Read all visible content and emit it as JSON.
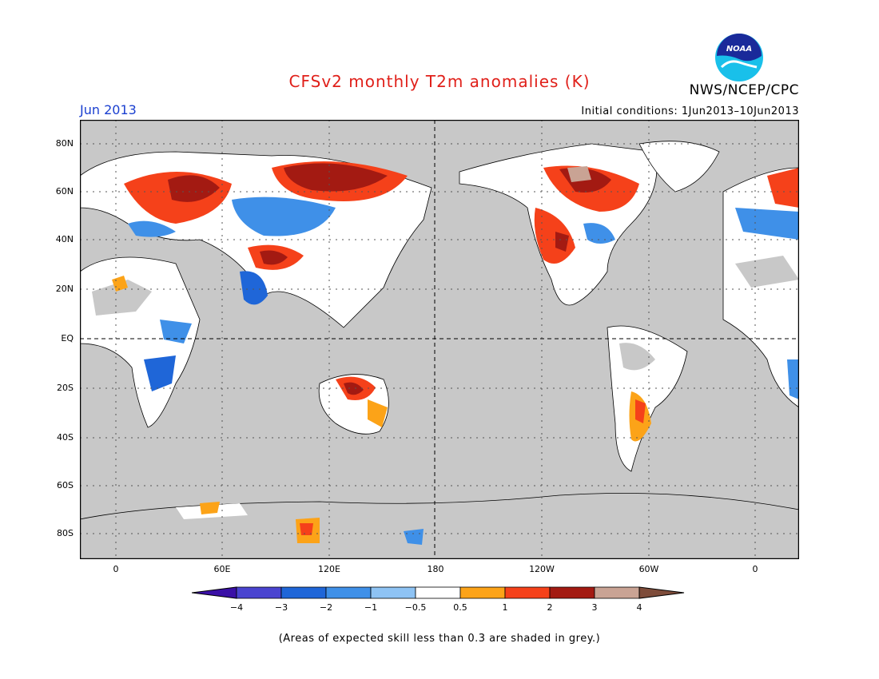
{
  "title": "CFSv2 monthly T2m anomalies (K)",
  "agency": "NWS/NCEP/CPC",
  "logo_text": "NOAA",
  "forecast_month": "Jun 2013",
  "initial_conditions": "Initial conditions: 1Jun2013–10Jun2013",
  "lat_labels": [
    "80N",
    "60N",
    "40N",
    "20N",
    "EQ",
    "20S",
    "40S",
    "60S",
    "80S"
  ],
  "lon_labels": [
    "0",
    "60E",
    "120E",
    "180",
    "120W",
    "60W",
    "0"
  ],
  "colorbar": {
    "ticks": [
      "−4",
      "−3",
      "−2",
      "−1",
      "−0.5",
      "0.5",
      "1",
      "2",
      "3",
      "4"
    ],
    "colors": [
      "#3a10a6",
      "#4a44d0",
      "#1f66d8",
      "#3f90e8",
      "#8ec3f4",
      "#ffffff",
      "#fca318",
      "#f5411a",
      "#a31a12",
      "#c9a394",
      "#7e4c3a"
    ]
  },
  "mask_color": "#c8c8c8",
  "footnote": "(Areas of expected skill less than 0.3 are shaded in grey.)"
}
